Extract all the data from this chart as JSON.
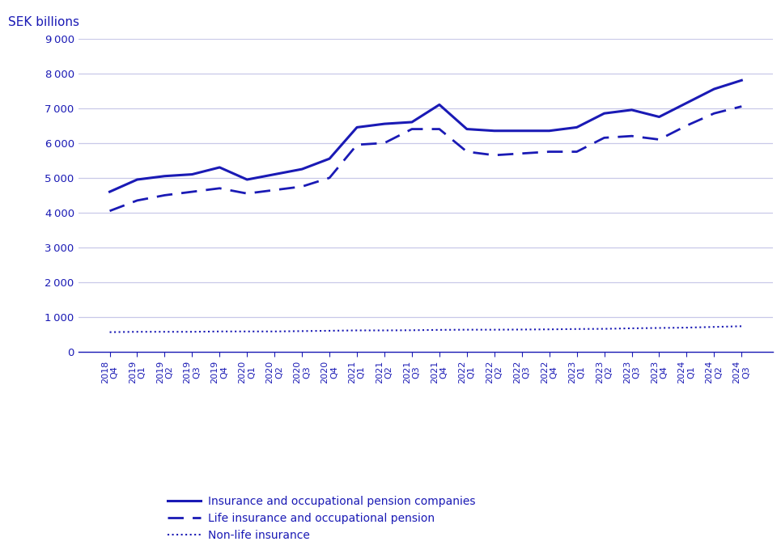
{
  "x_labels": [
    "2018\nQ4",
    "2019\nQ1",
    "2019\nQ2",
    "2019\nQ3",
    "2019\nQ4",
    "2020\nQ1",
    "2020\nQ2",
    "2020\nQ3",
    "2020\nQ4",
    "2021\nQ1",
    "2021\nQ2",
    "2021\nQ3",
    "2021\nQ4",
    "2022\nQ1",
    "2022\nQ2",
    "2022\nQ3",
    "2022\nQ4",
    "2023\nQ1",
    "2023\nQ2",
    "2023\nQ3",
    "2023\nQ4",
    "2024\nQ1",
    "2024\nQ2",
    "2024\nQ3"
  ],
  "series_total": [
    4600,
    4950,
    5050,
    5100,
    5300,
    4950,
    5100,
    5250,
    5550,
    6450,
    6550,
    6600,
    7100,
    6400,
    6350,
    6350,
    6350,
    6450,
    6850,
    6950,
    6750,
    7150,
    7550,
    7800
  ],
  "series_life": [
    4050,
    4350,
    4500,
    4600,
    4700,
    4550,
    4650,
    4750,
    5000,
    5950,
    6000,
    6400,
    6400,
    5750,
    5650,
    5700,
    5750,
    5750,
    6150,
    6200,
    6100,
    6500,
    6850,
    7050
  ],
  "series_nonlife": [
    570,
    580,
    580,
    580,
    590,
    590,
    590,
    600,
    610,
    620,
    620,
    625,
    635,
    640,
    640,
    645,
    650,
    660,
    665,
    680,
    690,
    700,
    720,
    740
  ],
  "line_color": "#1a1ab5",
  "ylabel_text": "SEK billions",
  "ylim": [
    0,
    9000
  ],
  "yticks": [
    0,
    1000,
    2000,
    3000,
    4000,
    5000,
    6000,
    7000,
    8000,
    9000
  ],
  "legend_labels": [
    "Insurance and occupational pension companies",
    "Life insurance and occupational pension",
    "Non-life insurance"
  ]
}
